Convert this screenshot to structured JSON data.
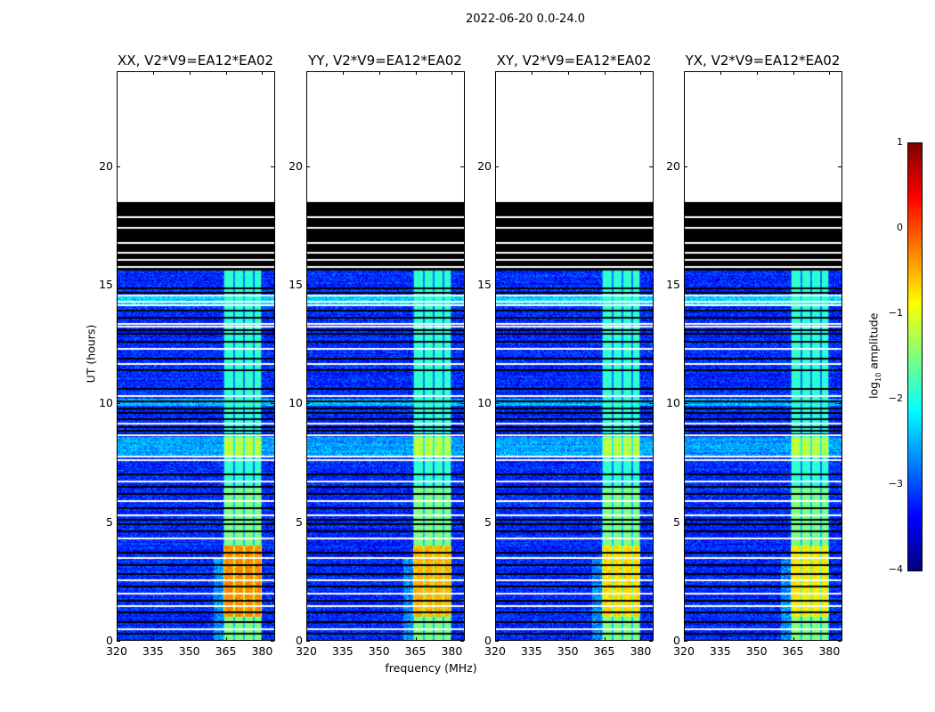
{
  "chart_data": {
    "type": "heatmap",
    "suptitle": "2022-06-20 0.0-24.0",
    "xlabel": "frequency (MHz)",
    "ylabel": "UT (hours)",
    "xlim": [
      320,
      385
    ],
    "ylim": [
      0,
      24
    ],
    "xticks": [
      320,
      335,
      350,
      365,
      380
    ],
    "yticks": [
      0,
      5,
      10,
      15,
      20
    ],
    "panels": [
      {
        "title": "XX, V2*V9=EA12*EA02",
        "peak_level": 0.1
      },
      {
        "title": "YY, V2*V9=EA12*EA02",
        "peak_level": -0.1
      },
      {
        "title": "XY, V2*V9=EA12*EA02",
        "peak_level": -0.3
      },
      {
        "title": "YX, V2*V9=EA12*EA02",
        "peak_level": -0.4
      }
    ],
    "data_hours": [
      0,
      15.6
    ],
    "flagged_hours": [
      15.6,
      18.5
    ],
    "background_level": -3.2,
    "rfi_band_mhz": [
      364,
      380
    ],
    "rfi_subband_edges_mhz": [
      364,
      368.5,
      372.5,
      376.5,
      380
    ],
    "rfi_band_level": -1.9,
    "strong_rfi_hours": [
      1.0,
      4.0
    ],
    "bright_segment_hours": [
      7.8,
      8.6
    ],
    "blank_row_hours": [
      0.5,
      1.45,
      2.0,
      2.55,
      3.5,
      4.3,
      5.3,
      5.9,
      6.7,
      7.6,
      7.75,
      8.65,
      9.15,
      10.3,
      11.65,
      12.3,
      13.25,
      13.35,
      14.15,
      14.3,
      14.55,
      15.75,
      16.05,
      16.35,
      16.75,
      17.4,
      17.85
    ],
    "black_row_hours": [
      0.3,
      0.8,
      1.2,
      1.7,
      2.3,
      2.8,
      3.2,
      3.7,
      4.6,
      4.9,
      5.1,
      5.6,
      6.2,
      6.5,
      7.0,
      8.7,
      8.85,
      9.0,
      9.35,
      9.6,
      9.8,
      10.1,
      10.6,
      11.4,
      11.9,
      12.6,
      12.95,
      13.1,
      13.6,
      13.9,
      14.65,
      14.85
    ],
    "colorbar": {
      "label_prefix": "log",
      "label_sub": "10",
      "label_suffix": " amplitude",
      "range": [
        -4,
        1
      ],
      "ticks": [
        "−4",
        "−3",
        "−2",
        "−1",
        "0",
        "1"
      ],
      "colormap": "jet"
    }
  }
}
